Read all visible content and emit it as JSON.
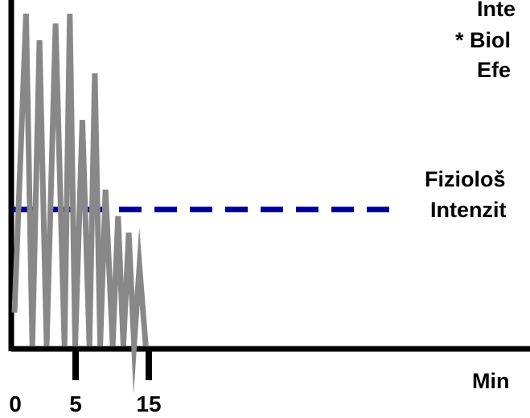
{
  "chart_data": {
    "type": "line",
    "title": "",
    "xlabel": "Min",
    "ylabel": "",
    "x_ticks": [
      0,
      5,
      15
    ],
    "x_tick_labels": [
      "0",
      "5",
      "15"
    ],
    "xlim": [
      0,
      30
    ],
    "series": [
      {
        "x": [
          0,
          1.3,
          2.0,
          2.8,
          3.6,
          4.6,
          5.6,
          6.2,
          6.8,
          7.6,
          8.4,
          9.0,
          9.6,
          10.2,
          11.0,
          11.6,
          12.2,
          12.8,
          13.4,
          14.0,
          14.7
        ],
        "values": [
          10,
          100,
          0,
          92,
          0,
          97,
          0,
          100,
          0,
          68,
          0,
          82,
          0,
          47,
          0,
          39,
          0,
          34,
          0,
          24,
          0
        ],
        "color": "#888888"
      }
    ],
    "reference_lines": [
      {
        "y": 41,
        "style": "dashed",
        "color": "#000099"
      }
    ],
    "annotations": [
      {
        "lines": [
          "Inte",
          "* Biol",
          "Efe"
        ]
      },
      {
        "lines": [
          "Fiziološ",
          "Intenzit"
        ]
      }
    ]
  }
}
